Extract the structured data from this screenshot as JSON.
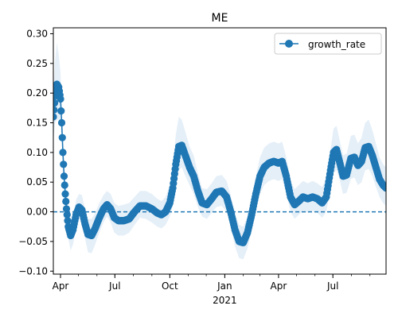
{
  "chart_data": {
    "type": "line",
    "title": "ME",
    "xlabel": "",
    "ylabel": "",
    "x_type": "date",
    "xlim": [
      "2020-03-20",
      "2021-09-28"
    ],
    "ylim": [
      -0.105,
      0.31
    ],
    "yticks": [
      -0.1,
      -0.05,
      0.0,
      0.05,
      0.1,
      0.15,
      0.2,
      0.25,
      0.3
    ],
    "ytick_labels": [
      "−0.10",
      "−0.05",
      "0.00",
      "0.05",
      "0.10",
      "0.15",
      "0.20",
      "0.25",
      "0.30"
    ],
    "xticks": [
      {
        "date": "2020-04-01",
        "label": "Apr"
      },
      {
        "date": "2020-07-01",
        "label": "Jul"
      },
      {
        "date": "2020-10-01",
        "label": "Oct"
      },
      {
        "date": "2021-01-01",
        "label": "Jan",
        "sublabel": "2021"
      },
      {
        "date": "2021-04-01",
        "label": "Apr"
      },
      {
        "date": "2021-07-01",
        "label": "Jul"
      }
    ],
    "grid": false,
    "legend_position": "top-right",
    "reference_line": {
      "y": 0.0,
      "style": "dashed"
    },
    "colors": {
      "series": "#1f77b4",
      "band": "#c6dbef"
    },
    "series": [
      {
        "name": "growth_rate",
        "band": "uncertainty interval",
        "points": [
          {
            "x": "2020-03-20",
            "y": 0.16,
            "lo": 0.12,
            "hi": 0.2
          },
          {
            "x": "2020-03-23",
            "y": 0.195,
            "lo": 0.15,
            "hi": 0.255
          },
          {
            "x": "2020-03-26",
            "y": 0.215,
            "lo": 0.155,
            "hi": 0.285
          },
          {
            "x": "2020-03-29",
            "y": 0.21,
            "lo": 0.155,
            "hi": 0.265
          },
          {
            "x": "2020-04-01",
            "y": 0.19,
            "lo": 0.15,
            "hi": 0.235
          },
          {
            "x": "2020-04-03",
            "y": 0.15,
            "lo": 0.115,
            "hi": 0.19
          },
          {
            "x": "2020-04-05",
            "y": 0.1,
            "lo": 0.07,
            "hi": 0.135
          },
          {
            "x": "2020-04-07",
            "y": 0.06,
            "lo": 0.035,
            "hi": 0.09
          },
          {
            "x": "2020-04-09",
            "y": 0.03,
            "lo": 0.01,
            "hi": 0.055
          },
          {
            "x": "2020-04-11",
            "y": 0.005,
            "lo": -0.015,
            "hi": 0.025
          },
          {
            "x": "2020-04-14",
            "y": -0.025,
            "lo": -0.045,
            "hi": -0.005
          },
          {
            "x": "2020-04-18",
            "y": -0.04,
            "lo": -0.065,
            "hi": -0.018
          },
          {
            "x": "2020-04-22",
            "y": -0.03,
            "lo": -0.055,
            "hi": -0.005
          },
          {
            "x": "2020-04-27",
            "y": -0.005,
            "lo": -0.028,
            "hi": 0.02
          },
          {
            "x": "2020-05-02",
            "y": 0.008,
            "lo": -0.012,
            "hi": 0.03
          },
          {
            "x": "2020-05-07",
            "y": 0.003,
            "lo": -0.02,
            "hi": 0.028
          },
          {
            "x": "2020-05-12",
            "y": -0.02,
            "lo": -0.045,
            "hi": 0.005
          },
          {
            "x": "2020-05-17",
            "y": -0.038,
            "lo": -0.068,
            "hi": -0.012
          },
          {
            "x": "2020-05-23",
            "y": -0.04,
            "lo": -0.07,
            "hi": -0.012
          },
          {
            "x": "2020-05-29",
            "y": -0.028,
            "lo": -0.055,
            "hi": -0.002
          },
          {
            "x": "2020-06-05",
            "y": -0.01,
            "lo": -0.035,
            "hi": 0.015
          },
          {
            "x": "2020-06-12",
            "y": 0.005,
            "lo": -0.018,
            "hi": 0.028
          },
          {
            "x": "2020-06-18",
            "y": 0.012,
            "lo": -0.008,
            "hi": 0.035
          },
          {
            "x": "2020-06-24",
            "y": 0.005,
            "lo": -0.018,
            "hi": 0.03
          },
          {
            "x": "2020-06-30",
            "y": -0.01,
            "lo": -0.035,
            "hi": 0.015
          },
          {
            "x": "2020-07-07",
            "y": -0.015,
            "lo": -0.04,
            "hi": 0.01
          },
          {
            "x": "2020-07-16",
            "y": -0.015,
            "lo": -0.04,
            "hi": 0.012
          },
          {
            "x": "2020-07-25",
            "y": -0.012,
            "lo": -0.035,
            "hi": 0.015
          },
          {
            "x": "2020-08-03",
            "y": 0.0,
            "lo": -0.022,
            "hi": 0.025
          },
          {
            "x": "2020-08-12",
            "y": 0.01,
            "lo": -0.01,
            "hi": 0.035
          },
          {
            "x": "2020-08-22",
            "y": 0.01,
            "lo": -0.012,
            "hi": 0.035
          },
          {
            "x": "2020-09-01",
            "y": 0.005,
            "lo": -0.018,
            "hi": 0.03
          },
          {
            "x": "2020-09-10",
            "y": -0.002,
            "lo": -0.025,
            "hi": 0.022
          },
          {
            "x": "2020-09-17",
            "y": -0.005,
            "lo": -0.028,
            "hi": 0.018
          },
          {
            "x": "2020-09-24",
            "y": 0.0,
            "lo": -0.022,
            "hi": 0.025
          },
          {
            "x": "2020-10-01",
            "y": 0.015,
            "lo": -0.008,
            "hi": 0.045
          },
          {
            "x": "2020-10-06",
            "y": 0.04,
            "lo": 0.01,
            "hi": 0.08
          },
          {
            "x": "2020-10-11",
            "y": 0.08,
            "lo": 0.045,
            "hi": 0.13
          },
          {
            "x": "2020-10-16",
            "y": 0.11,
            "lo": 0.07,
            "hi": 0.16
          },
          {
            "x": "2020-10-21",
            "y": 0.112,
            "lo": 0.075,
            "hi": 0.155
          },
          {
            "x": "2020-10-27",
            "y": 0.095,
            "lo": 0.06,
            "hi": 0.135
          },
          {
            "x": "2020-11-03",
            "y": 0.075,
            "lo": 0.045,
            "hi": 0.11
          },
          {
            "x": "2020-11-10",
            "y": 0.06,
            "lo": 0.03,
            "hi": 0.095
          },
          {
            "x": "2020-11-17",
            "y": 0.035,
            "lo": 0.008,
            "hi": 0.065
          },
          {
            "x": "2020-11-24",
            "y": 0.015,
            "lo": -0.008,
            "hi": 0.04
          },
          {
            "x": "2020-12-02",
            "y": 0.012,
            "lo": -0.012,
            "hi": 0.038
          },
          {
            "x": "2020-12-10",
            "y": 0.022,
            "lo": -0.002,
            "hi": 0.048
          },
          {
            "x": "2020-12-18",
            "y": 0.033,
            "lo": 0.008,
            "hi": 0.06
          },
          {
            "x": "2020-12-27",
            "y": 0.035,
            "lo": 0.01,
            "hi": 0.062
          },
          {
            "x": "2021-01-04",
            "y": 0.025,
            "lo": 0.0,
            "hi": 0.052
          },
          {
            "x": "2021-01-11",
            "y": 0.0,
            "lo": -0.025,
            "hi": 0.028
          },
          {
            "x": "2021-01-18",
            "y": -0.03,
            "lo": -0.058,
            "hi": -0.002
          },
          {
            "x": "2021-01-25",
            "y": -0.05,
            "lo": -0.078,
            "hi": -0.022
          },
          {
            "x": "2021-02-01",
            "y": -0.052,
            "lo": -0.08,
            "hi": -0.025
          },
          {
            "x": "2021-02-08",
            "y": -0.035,
            "lo": -0.062,
            "hi": -0.008
          },
          {
            "x": "2021-02-15",
            "y": -0.005,
            "lo": -0.032,
            "hi": 0.022
          },
          {
            "x": "2021-02-22",
            "y": 0.03,
            "lo": 0.002,
            "hi": 0.06
          },
          {
            "x": "2021-03-01",
            "y": 0.06,
            "lo": 0.03,
            "hi": 0.092
          },
          {
            "x": "2021-03-08",
            "y": 0.075,
            "lo": 0.045,
            "hi": 0.108
          },
          {
            "x": "2021-03-16",
            "y": 0.082,
            "lo": 0.052,
            "hi": 0.115
          },
          {
            "x": "2021-03-24",
            "y": 0.085,
            "lo": 0.055,
            "hi": 0.118
          },
          {
            "x": "2021-04-01",
            "y": 0.082,
            "lo": 0.052,
            "hi": 0.115
          },
          {
            "x": "2021-04-07",
            "y": 0.085,
            "lo": 0.055,
            "hi": 0.118
          },
          {
            "x": "2021-04-14",
            "y": 0.06,
            "lo": 0.032,
            "hi": 0.092
          },
          {
            "x": "2021-04-21",
            "y": 0.025,
            "lo": 0.0,
            "hi": 0.052
          },
          {
            "x": "2021-04-28",
            "y": 0.012,
            "lo": -0.012,
            "hi": 0.038
          },
          {
            "x": "2021-05-05",
            "y": 0.018,
            "lo": -0.005,
            "hi": 0.045
          },
          {
            "x": "2021-05-12",
            "y": 0.025,
            "lo": 0.002,
            "hi": 0.052
          },
          {
            "x": "2021-05-20",
            "y": 0.022,
            "lo": -0.002,
            "hi": 0.048
          },
          {
            "x": "2021-05-28",
            "y": 0.025,
            "lo": 0.002,
            "hi": 0.052
          },
          {
            "x": "2021-06-05",
            "y": 0.022,
            "lo": -0.002,
            "hi": 0.048
          },
          {
            "x": "2021-06-13",
            "y": 0.015,
            "lo": -0.01,
            "hi": 0.042
          },
          {
            "x": "2021-06-20",
            "y": 0.025,
            "lo": 0.0,
            "hi": 0.055
          },
          {
            "x": "2021-06-27",
            "y": 0.07,
            "lo": 0.04,
            "hi": 0.105
          },
          {
            "x": "2021-07-02",
            "y": 0.1,
            "lo": 0.065,
            "hi": 0.14
          },
          {
            "x": "2021-07-07",
            "y": 0.105,
            "lo": 0.07,
            "hi": 0.145
          },
          {
            "x": "2021-07-12",
            "y": 0.085,
            "lo": 0.055,
            "hi": 0.122
          },
          {
            "x": "2021-07-18",
            "y": 0.06,
            "lo": 0.03,
            "hi": 0.095
          },
          {
            "x": "2021-07-24",
            "y": 0.062,
            "lo": 0.032,
            "hi": 0.098
          },
          {
            "x": "2021-07-31",
            "y": 0.09,
            "lo": 0.055,
            "hi": 0.128
          },
          {
            "x": "2021-08-06",
            "y": 0.092,
            "lo": 0.058,
            "hi": 0.13
          },
          {
            "x": "2021-08-12",
            "y": 0.078,
            "lo": 0.045,
            "hi": 0.115
          },
          {
            "x": "2021-08-18",
            "y": 0.085,
            "lo": 0.05,
            "hi": 0.125
          },
          {
            "x": "2021-08-24",
            "y": 0.108,
            "lo": 0.07,
            "hi": 0.15
          },
          {
            "x": "2021-08-30",
            "y": 0.11,
            "lo": 0.072,
            "hi": 0.155
          },
          {
            "x": "2021-09-05",
            "y": 0.095,
            "lo": 0.06,
            "hi": 0.138
          },
          {
            "x": "2021-09-11",
            "y": 0.075,
            "lo": 0.042,
            "hi": 0.115
          },
          {
            "x": "2021-09-17",
            "y": 0.055,
            "lo": 0.025,
            "hi": 0.092
          },
          {
            "x": "2021-09-23",
            "y": 0.045,
            "lo": 0.015,
            "hi": 0.08
          },
          {
            "x": "2021-09-28",
            "y": 0.04,
            "lo": 0.01,
            "hi": 0.075
          }
        ]
      }
    ]
  }
}
